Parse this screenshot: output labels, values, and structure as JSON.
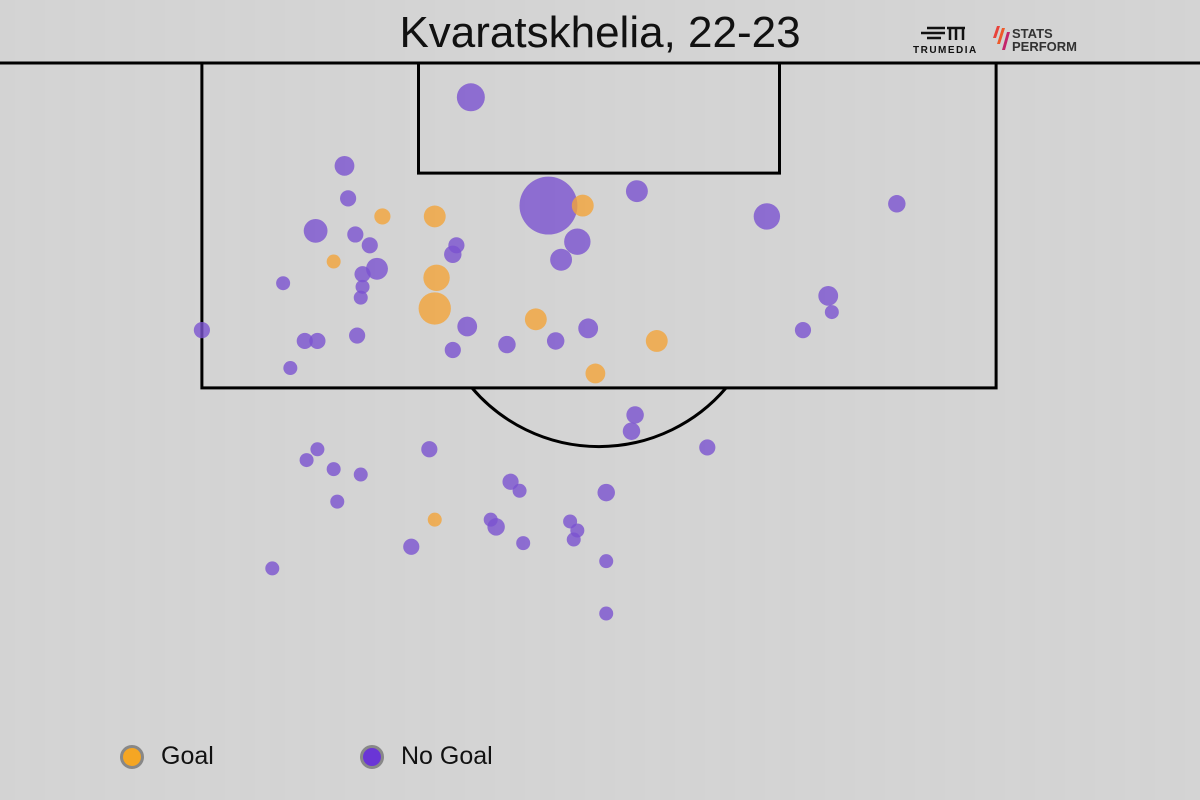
{
  "chart_data": {
    "type": "scatter",
    "title": "Kvaratskhelia, 22-23",
    "units": {
      "x": "yards from pitch centre line (left negative)",
      "y": "yards from goal line",
      "size": "xG"
    },
    "legend": {
      "placement": "bottom-left",
      "entries": [
        {
          "label": "Goal",
          "color": "#f5a623"
        },
        {
          "label": "No Goal",
          "color": "#6a35d6"
        }
      ]
    },
    "colors": {
      "goal": "#f2a43a",
      "no_goal": "#7a52d0",
      "background": "#d4d4d4",
      "lines": "#000000"
    },
    "logos": [
      "TRUMEDIA",
      "STATS PERFORM"
    ],
    "series": [
      {
        "name": "Goal",
        "points": [
          [
            -12.0,
            8.5,
            0.06
          ],
          [
            -9.1,
            8.5,
            0.11
          ],
          [
            -0.9,
            7.9,
            0.11
          ],
          [
            -14.7,
            11.0,
            0.045
          ],
          [
            -9.0,
            11.9,
            0.16
          ],
          [
            -9.1,
            13.6,
            0.24
          ],
          [
            -3.5,
            14.2,
            0.11
          ],
          [
            3.2,
            15.4,
            0.11
          ],
          [
            -0.2,
            17.2,
            0.09
          ],
          [
            -9.1,
            25.3,
            0.045
          ]
        ]
      },
      {
        "name": "No Goal",
        "points": [
          [
            -7.1,
            1.9,
            0.18
          ],
          [
            -14.1,
            5.7,
            0.09
          ],
          [
            -13.9,
            7.5,
            0.06
          ],
          [
            -15.7,
            9.3,
            0.13
          ],
          [
            -13.5,
            9.5,
            0.06
          ],
          [
            -12.7,
            10.1,
            0.06
          ],
          [
            -12.3,
            11.4,
            0.11
          ],
          [
            -13.1,
            11.7,
            0.06
          ],
          [
            -13.1,
            12.4,
            0.045
          ],
          [
            -13.2,
            13.0,
            0.045
          ],
          [
            -17.5,
            12.2,
            0.045
          ],
          [
            -22.0,
            14.8,
            0.06
          ],
          [
            -16.3,
            15.4,
            0.06
          ],
          [
            -15.6,
            15.4,
            0.06
          ],
          [
            -13.4,
            15.1,
            0.06
          ],
          [
            -17.1,
            16.9,
            0.045
          ],
          [
            -7.9,
            10.1,
            0.06
          ],
          [
            -8.1,
            10.6,
            0.07
          ],
          [
            -7.3,
            14.6,
            0.09
          ],
          [
            -8.1,
            15.9,
            0.06
          ],
          [
            -5.1,
            15.6,
            0.07
          ],
          [
            -2.8,
            7.9,
            0.77
          ],
          [
            -1.2,
            9.9,
            0.16
          ],
          [
            -2.1,
            10.9,
            0.11
          ],
          [
            2.1,
            7.1,
            0.11
          ],
          [
            -0.6,
            14.7,
            0.09
          ],
          [
            -2.4,
            15.4,
            0.07
          ],
          [
            9.3,
            8.5,
            0.16
          ],
          [
            16.5,
            7.8,
            0.07
          ],
          [
            12.7,
            12.9,
            0.09
          ],
          [
            12.9,
            13.8,
            0.045
          ],
          [
            11.3,
            14.8,
            0.06
          ],
          [
            2.0,
            19.5,
            0.07
          ],
          [
            1.8,
            20.4,
            0.07
          ],
          [
            6.0,
            21.3,
            0.06
          ],
          [
            -9.4,
            21.4,
            0.06
          ],
          [
            -15.6,
            21.4,
            0.045
          ],
          [
            -16.2,
            22.0,
            0.045
          ],
          [
            -14.7,
            22.5,
            0.045
          ],
          [
            -13.2,
            22.8,
            0.045
          ],
          [
            -14.5,
            24.3,
            0.045
          ],
          [
            -4.9,
            23.2,
            0.06
          ],
          [
            -4.4,
            23.7,
            0.045
          ],
          [
            0.4,
            23.8,
            0.07
          ],
          [
            -6.0,
            25.3,
            0.045
          ],
          [
            -5.7,
            25.7,
            0.07
          ],
          [
            -1.6,
            25.4,
            0.045
          ],
          [
            -1.2,
            25.9,
            0.045
          ],
          [
            -1.4,
            26.4,
            0.045
          ],
          [
            -4.2,
            26.6,
            0.045
          ],
          [
            -10.4,
            26.8,
            0.06
          ],
          [
            0.4,
            27.6,
            0.045
          ],
          [
            -18.1,
            28.0,
            0.045
          ],
          [
            0.4,
            30.5,
            0.045
          ]
        ]
      }
    ]
  }
}
